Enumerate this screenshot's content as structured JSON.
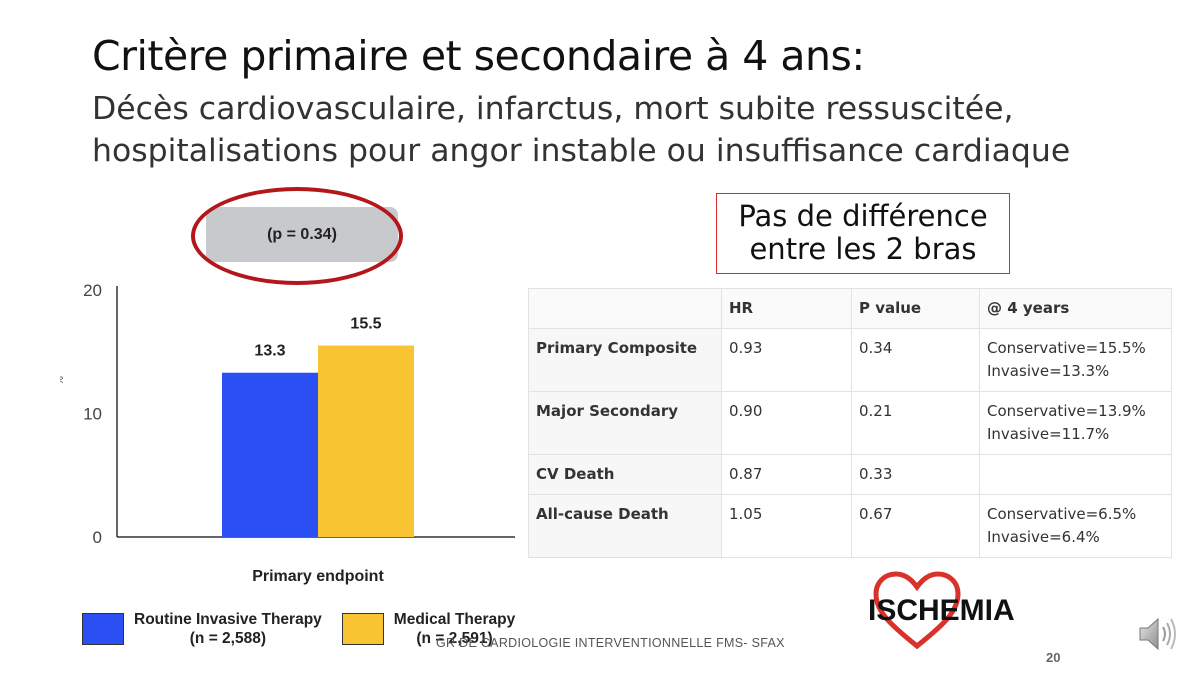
{
  "slide": {
    "title": "Critère primaire et secondaire à 4 ans:",
    "subtitle_line1": "Décès cardiovasculaire, infarctus, mort subite ressuscitée,",
    "subtitle_line2": "hospitalisations pour angor instable ou insuffisance cardiaque",
    "p_value_label": "(p = 0.34)",
    "callout_line1": "Pas de différence",
    "callout_line2": "entre les 2 bras",
    "logo_text": "ISCHEMIA",
    "footer": "GR DE CARDIOLOGIE INTERVENTIONNELLE FMS- SFAX",
    "page_number": "20",
    "accent_red": "#b3171c"
  },
  "chart_data": {
    "type": "bar",
    "categories": [
      "Primary endpoint"
    ],
    "series": [
      {
        "name": "Routine Invasive Therapy (n = 2,588)",
        "values": [
          13.3
        ],
        "color": "#2a4ff2"
      },
      {
        "name": "Medical Therapy (n = 2,591)",
        "values": [
          15.5
        ],
        "color": "#f8c431"
      }
    ],
    "title": "",
    "xlabel": "Primary endpoint",
    "ylabel": "%",
    "ylim": [
      0,
      20
    ],
    "yticks": [
      0,
      10,
      20
    ],
    "data_labels": [
      "13.3",
      "15.5"
    ],
    "grid": false,
    "legend_position": "bottom-left"
  },
  "legend": [
    {
      "line1": "Routine Invasive Therapy",
      "line2": "(n = 2,588)",
      "color": "#2a4ff2"
    },
    {
      "line1": "Medical Therapy",
      "line2": "(n = 2,591)",
      "color": "#f8c431"
    }
  ],
  "table": {
    "headers": [
      "",
      "HR",
      "P value",
      "@ 4 years"
    ],
    "rows": [
      {
        "label": "Primary Composite",
        "hr": "0.93",
        "p": "0.34",
        "line1": "Conservative=15.5%",
        "line2": "Invasive=13.3%"
      },
      {
        "label": "Major Secondary",
        "hr": "0.90",
        "p": "0.21",
        "line1": "Conservative=13.9%",
        "line2": "Invasive=11.7%"
      },
      {
        "label": "CV Death",
        "hr": "0.87",
        "p": "0.33",
        "line1": "",
        "line2": ""
      },
      {
        "label": "All-cause Death",
        "hr": "1.05",
        "p": "0.67",
        "line1": "Conservative=6.5%",
        "line2": "Invasive=6.4%"
      }
    ]
  },
  "icons": {
    "logo": "heart-icon",
    "audio": "speaker-icon"
  }
}
